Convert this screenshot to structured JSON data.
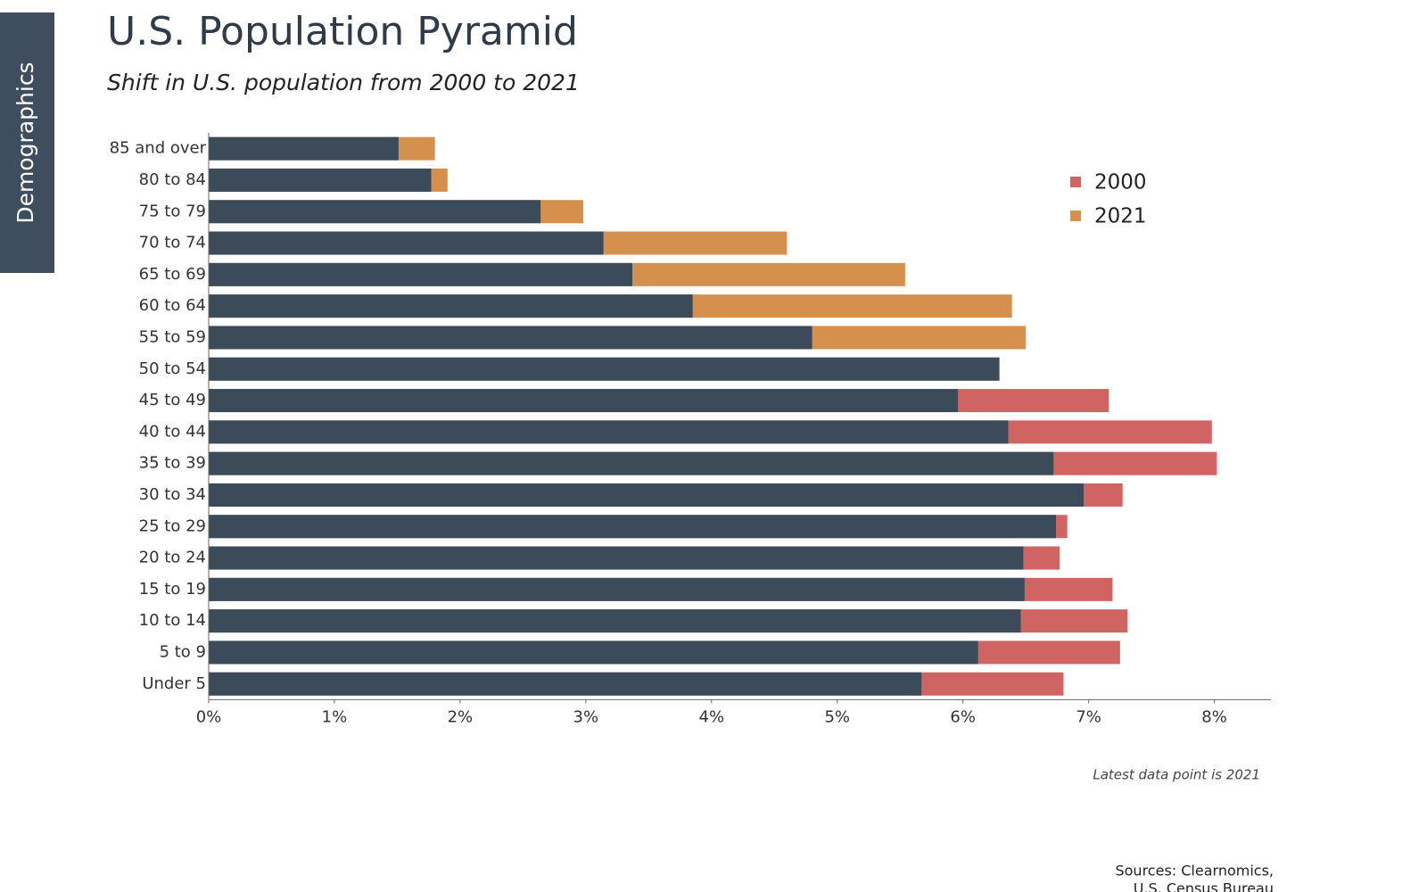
{
  "sidebar": "Demographics",
  "chart_data": {
    "type": "overlap-bar",
    "title": "U.S. Population Pyramid",
    "subtitle": "Shift in U.S. population from 2000 to 2021",
    "categories": [
      "85 and over",
      "80 to 84",
      "75 to 79",
      "70 to 74",
      "65 to 69",
      "60 to 64",
      "55 to 59",
      "50 to 54",
      "45 to 49",
      "40 to 44",
      "35 to 39",
      "30 to 34",
      "25 to 29",
      "20 to 24",
      "15 to 19",
      "10 to 14",
      "5 to 9",
      "Under 5"
    ],
    "series": [
      {
        "name": "2000",
        "color": "#d06462",
        "values": [
          1.51,
          1.77,
          2.64,
          3.14,
          3.37,
          3.85,
          4.8,
          6.29,
          7.16,
          7.98,
          8.02,
          7.27,
          6.83,
          6.77,
          7.19,
          7.31,
          7.25,
          6.8
        ]
      },
      {
        "name": "2021",
        "color": "#d4904c",
        "values": [
          1.8,
          1.9,
          2.98,
          4.6,
          5.54,
          6.39,
          6.5,
          6.29,
          5.96,
          6.36,
          6.72,
          6.96,
          6.74,
          6.48,
          6.49,
          6.46,
          6.12,
          5.67
        ]
      }
    ],
    "overlap_color": "#3b4b5a",
    "xlim": [
      0,
      8.45
    ],
    "xticks": [
      {
        "value": 0,
        "label": "0%"
      },
      {
        "value": 1,
        "label": "1%"
      },
      {
        "value": 2,
        "label": "2%"
      },
      {
        "value": 3,
        "label": "3%"
      },
      {
        "value": 4,
        "label": "4%"
      },
      {
        "value": 5,
        "label": "5%"
      },
      {
        "value": 6,
        "label": "6%"
      },
      {
        "value": 7,
        "label": "7%"
      },
      {
        "value": 8,
        "label": "8%"
      }
    ],
    "legend": "upper right",
    "note": "Latest data point is 2021",
    "sources": [
      "Sources: Clearnomics,",
      "U.S. Census Bureau"
    ]
  }
}
